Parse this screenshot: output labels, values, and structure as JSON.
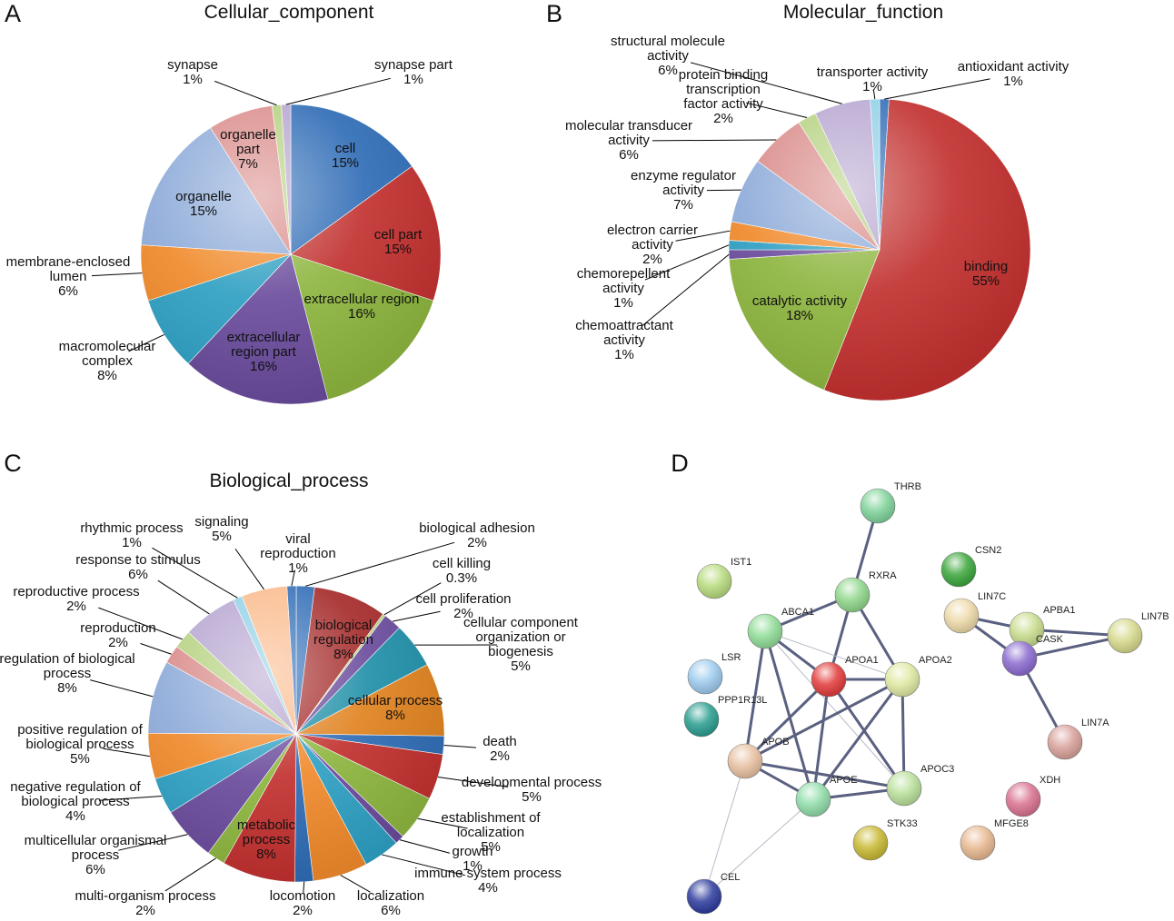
{
  "chart_data": [
    {
      "type": "pie",
      "panel": "A",
      "title": "Cellular_component",
      "categories": [
        "cell",
        "cell part",
        "extracellular region",
        "extracellular region part",
        "macromolecular complex",
        "membrane-enclosed lumen",
        "organelle",
        "organelle part",
        "synapse",
        "synapse part"
      ],
      "values": [
        15,
        15,
        16,
        16,
        8,
        6,
        15,
        7,
        1,
        1
      ],
      "value_labels": [
        "15%",
        "15%",
        "16%",
        "16%",
        "8%",
        "6%",
        "15%",
        "7%",
        "1%",
        "1%"
      ],
      "colors": [
        "#2f6cb6",
        "#c1302e",
        "#8db53e",
        "#6a4b9c",
        "#2e9fc2",
        "#f08a2b",
        "#8eabd9",
        "#d98b89",
        "#b5d17f",
        "#b6a5d0"
      ]
    },
    {
      "type": "pie",
      "panel": "B",
      "title": "Molecular_function",
      "categories": [
        "antioxidant activity",
        "binding",
        "catalytic activity",
        "chemoattractant activity",
        "chemorepellent activity",
        "electron carrier activity",
        "enzyme regulator activity",
        "molecular transducer activity",
        "protein binding transcription factor activity",
        "structural molecule activity",
        "transporter activity"
      ],
      "values": [
        1,
        55,
        18,
        1,
        1,
        2,
        7,
        6,
        2,
        6,
        1
      ],
      "value_labels": [
        "1%",
        "55%",
        "18%",
        "1%",
        "1%",
        "2%",
        "7%",
        "6%",
        "2%",
        "6%",
        "1%"
      ],
      "colors": [
        "#2f6cb6",
        "#c1302e",
        "#8db53e",
        "#6a4b9c",
        "#2e9fc2",
        "#f08a2b",
        "#8eabd9",
        "#d98b89",
        "#b5d17f",
        "#b6a5d0",
        "#8fd0e6"
      ]
    },
    {
      "type": "pie",
      "panel": "C",
      "title": "Biological_process",
      "categories": [
        "biological adhesion",
        "biological regulation",
        "cell killing",
        "cell proliferation",
        "cellular component organization or biogenesis",
        "cellular process",
        "death",
        "developmental process",
        "establishment of localization",
        "growth",
        "immune system process",
        "localization",
        "locomotion",
        "metabolic process",
        "multi-organism process",
        "multicellular organismal process",
        "negative regulation of biological process",
        "positive regulation of biological process",
        "regulation of biological process",
        "reproduction",
        "reproductive process",
        "response to stimulus",
        "rhythmic process",
        "signaling",
        "viral reproduction"
      ],
      "values": [
        2,
        8,
        0.3,
        2,
        5,
        8,
        2,
        5,
        5,
        1,
        4,
        6,
        2,
        8,
        2,
        6,
        4,
        5,
        8,
        2,
        2,
        6,
        1,
        5,
        1
      ],
      "value_labels": [
        "2%",
        "8%",
        "0.3%",
        "2%",
        "5%",
        "8%",
        "2%",
        "5%",
        "5%",
        "1%",
        "4%",
        "6%",
        "2%",
        "8%",
        "2%",
        "6%",
        "4%",
        "5%",
        "8%",
        "2%",
        "2%",
        "6%",
        "1%",
        "5%",
        "1%"
      ],
      "colors": [
        "#2f6cb6",
        "#a52a2a",
        "#b5d17f",
        "#6a4b9c",
        "#1f8fa8",
        "#e0821f",
        "#2f6cb6",
        "#c1302e",
        "#8db53e",
        "#6a4b9c",
        "#2e9fc2",
        "#f08a2b",
        "#2f6cb6",
        "#c1302e",
        "#8db53e",
        "#6a4b9c",
        "#2e9fc2",
        "#f08a2b",
        "#8eabd9",
        "#d98b89",
        "#b5d17f",
        "#b6a5d0",
        "#8fd0e6",
        "#fab98a",
        "#2f6cb6"
      ]
    }
  ],
  "network": {
    "panel": "D",
    "nodes": [
      "THRB",
      "IST1",
      "CSN2",
      "RXRA",
      "ABCA1",
      "LIN7C",
      "APBA1",
      "LIN7B",
      "LSR",
      "APOA1",
      "APOA2",
      "CASK",
      "PPP1R13L",
      "LIN7A",
      "APOB",
      "APOE",
      "APOC3",
      "XDH",
      "STK33",
      "MFGE8",
      "CEL"
    ]
  }
}
